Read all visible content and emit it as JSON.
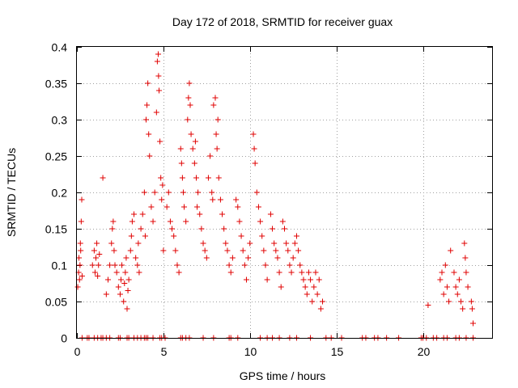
{
  "chart_data": {
    "type": "scatter",
    "title": "Day 172 of 2018, SRMTID for receiver guax",
    "xlabel": "GPS time / hours",
    "ylabel": "SRMTID / TECUs",
    "xlim": [
      0,
      24
    ],
    "ylim": [
      0,
      0.4
    ],
    "grid": true,
    "marker": "+",
    "color": "#e00000",
    "x_ticks": [
      {
        "value": 0,
        "label": "0"
      },
      {
        "value": 5,
        "label": "5"
      },
      {
        "value": 10,
        "label": "10"
      },
      {
        "value": 15,
        "label": "15"
      },
      {
        "value": 20,
        "label": "20"
      }
    ],
    "y_ticks": [
      {
        "value": 0,
        "label": "0"
      },
      {
        "value": 0.05,
        "label": "0.05"
      },
      {
        "value": 0.1,
        "label": "0.1"
      },
      {
        "value": 0.15,
        "label": "0.15"
      },
      {
        "value": 0.2,
        "label": "0.2"
      },
      {
        "value": 0.25,
        "label": "0.25"
      },
      {
        "value": 0.3,
        "label": "0.3"
      },
      {
        "value": 0.35,
        "label": "0.35"
      },
      {
        "value": 0.4,
        "label": "0.4"
      }
    ],
    "points": [
      [
        0.05,
        0.07
      ],
      [
        0.1,
        0.09
      ],
      [
        0.12,
        0.11
      ],
      [
        0.15,
        0.08
      ],
      [
        0.18,
        0.1
      ],
      [
        0.2,
        0.13
      ],
      [
        0.22,
        0.12
      ],
      [
        0.25,
        0.16
      ],
      [
        0.28,
        0.19
      ],
      [
        0.3,
        0.085
      ],
      [
        0.9,
        0.1
      ],
      [
        1.0,
        0.12
      ],
      [
        1.05,
        0.09
      ],
      [
        1.1,
        0.11
      ],
      [
        1.15,
        0.13
      ],
      [
        1.2,
        0.085
      ],
      [
        1.25,
        0.1
      ],
      [
        1.3,
        0.115
      ],
      [
        1.5,
        0.22
      ],
      [
        1.7,
        0.06
      ],
      [
        1.8,
        0.08
      ],
      [
        1.9,
        0.1
      ],
      [
        2.0,
        0.13
      ],
      [
        2.05,
        0.15
      ],
      [
        2.1,
        0.16
      ],
      [
        2.15,
        0.12
      ],
      [
        2.2,
        0.1
      ],
      [
        2.3,
        0.09
      ],
      [
        2.4,
        0.07
      ],
      [
        2.5,
        0.06
      ],
      [
        2.55,
        0.08
      ],
      [
        2.6,
        0.1
      ],
      [
        2.7,
        0.05
      ],
      [
        2.75,
        0.075
      ],
      [
        2.8,
        0.09
      ],
      [
        2.85,
        0.11
      ],
      [
        2.9,
        0.04
      ],
      [
        2.95,
        0.065
      ],
      [
        3.0,
        0.08
      ],
      [
        3.1,
        0.12
      ],
      [
        3.15,
        0.14
      ],
      [
        3.2,
        0.16
      ],
      [
        3.3,
        0.17
      ],
      [
        3.4,
        0.11
      ],
      [
        3.5,
        0.1
      ],
      [
        3.55,
        0.13
      ],
      [
        3.6,
        0.09
      ],
      [
        3.7,
        0.15
      ],
      [
        3.8,
        0.17
      ],
      [
        3.9,
        0.2
      ],
      [
        3.95,
        0.14
      ],
      [
        4.0,
        0.3
      ],
      [
        4.05,
        0.32
      ],
      [
        4.1,
        0.35
      ],
      [
        4.15,
        0.28
      ],
      [
        4.2,
        0.25
      ],
      [
        4.3,
        0.18
      ],
      [
        4.4,
        0.16
      ],
      [
        4.5,
        0.2
      ],
      [
        4.6,
        0.31
      ],
      [
        4.65,
        0.38
      ],
      [
        4.7,
        0.39
      ],
      [
        4.72,
        0.36
      ],
      [
        4.75,
        0.34
      ],
      [
        4.8,
        0.27
      ],
      [
        4.85,
        0.22
      ],
      [
        4.9,
        0.19
      ],
      [
        4.95,
        0.21
      ],
      [
        5.0,
        0.12
      ],
      [
        5.2,
        0.18
      ],
      [
        5.3,
        0.2
      ],
      [
        5.4,
        0.16
      ],
      [
        5.5,
        0.15
      ],
      [
        5.6,
        0.14
      ],
      [
        5.7,
        0.12
      ],
      [
        5.8,
        0.1
      ],
      [
        5.9,
        0.09
      ],
      [
        6.0,
        0.26
      ],
      [
        6.05,
        0.24
      ],
      [
        6.1,
        0.22
      ],
      [
        6.15,
        0.2
      ],
      [
        6.2,
        0.18
      ],
      [
        6.3,
        0.16
      ],
      [
        6.4,
        0.3
      ],
      [
        6.45,
        0.33
      ],
      [
        6.5,
        0.35
      ],
      [
        6.55,
        0.32
      ],
      [
        6.6,
        0.28
      ],
      [
        6.7,
        0.26
      ],
      [
        6.8,
        0.24
      ],
      [
        6.85,
        0.27
      ],
      [
        6.9,
        0.22
      ],
      [
        6.95,
        0.18
      ],
      [
        7.0,
        0.2
      ],
      [
        7.1,
        0.17
      ],
      [
        7.2,
        0.15
      ],
      [
        7.3,
        0.13
      ],
      [
        7.4,
        0.12
      ],
      [
        7.5,
        0.11
      ],
      [
        7.6,
        0.22
      ],
      [
        7.7,
        0.25
      ],
      [
        7.8,
        0.2
      ],
      [
        7.85,
        0.19
      ],
      [
        7.9,
        0.32
      ],
      [
        8.0,
        0.33
      ],
      [
        8.05,
        0.28
      ],
      [
        8.1,
        0.26
      ],
      [
        8.15,
        0.3
      ],
      [
        8.2,
        0.22
      ],
      [
        8.3,
        0.19
      ],
      [
        8.4,
        0.17
      ],
      [
        8.5,
        0.15
      ],
      [
        8.6,
        0.13
      ],
      [
        8.7,
        0.12
      ],
      [
        8.8,
        0.1
      ],
      [
        8.9,
        0.09
      ],
      [
        9.0,
        0.11
      ],
      [
        9.2,
        0.19
      ],
      [
        9.3,
        0.18
      ],
      [
        9.4,
        0.16
      ],
      [
        9.5,
        0.14
      ],
      [
        9.6,
        0.12
      ],
      [
        9.7,
        0.1
      ],
      [
        9.8,
        0.08
      ],
      [
        9.9,
        0.11
      ],
      [
        10.0,
        0.13
      ],
      [
        10.2,
        0.28
      ],
      [
        10.25,
        0.26
      ],
      [
        10.3,
        0.24
      ],
      [
        10.4,
        0.2
      ],
      [
        10.5,
        0.18
      ],
      [
        10.6,
        0.16
      ],
      [
        10.7,
        0.14
      ],
      [
        10.8,
        0.12
      ],
      [
        10.9,
        0.1
      ],
      [
        11.0,
        0.08
      ],
      [
        11.2,
        0.17
      ],
      [
        11.3,
        0.15
      ],
      [
        11.4,
        0.13
      ],
      [
        11.5,
        0.12
      ],
      [
        11.6,
        0.11
      ],
      [
        11.7,
        0.09
      ],
      [
        11.8,
        0.07
      ],
      [
        11.9,
        0.16
      ],
      [
        12.0,
        0.15
      ],
      [
        12.1,
        0.13
      ],
      [
        12.2,
        0.12
      ],
      [
        12.3,
        0.1
      ],
      [
        12.4,
        0.09
      ],
      [
        12.5,
        0.11
      ],
      [
        12.6,
        0.13
      ],
      [
        12.7,
        0.14
      ],
      [
        12.8,
        0.12
      ],
      [
        12.9,
        0.1
      ],
      [
        13.0,
        0.09
      ],
      [
        13.1,
        0.08
      ],
      [
        13.2,
        0.07
      ],
      [
        13.3,
        0.06
      ],
      [
        13.4,
        0.09
      ],
      [
        13.5,
        0.08
      ],
      [
        13.6,
        0.05
      ],
      [
        13.7,
        0.07
      ],
      [
        13.8,
        0.09
      ],
      [
        13.9,
        0.06
      ],
      [
        14.0,
        0.08
      ],
      [
        14.1,
        0.04
      ],
      [
        14.2,
        0.05
      ],
      [
        20.3,
        0.045
      ],
      [
        21.0,
        0.08
      ],
      [
        21.1,
        0.09
      ],
      [
        21.2,
        0.06
      ],
      [
        21.3,
        0.1
      ],
      [
        21.4,
        0.07
      ],
      [
        21.5,
        0.05
      ],
      [
        21.6,
        0.12
      ],
      [
        21.8,
        0.09
      ],
      [
        21.9,
        0.07
      ],
      [
        22.0,
        0.06
      ],
      [
        22.1,
        0.08
      ],
      [
        22.2,
        0.05
      ],
      [
        22.3,
        0.04
      ],
      [
        22.4,
        0.13
      ],
      [
        22.45,
        0.11
      ],
      [
        22.5,
        0.09
      ],
      [
        22.6,
        0.07
      ],
      [
        22.8,
        0.05
      ],
      [
        22.85,
        0.04
      ],
      [
        22.9,
        0.02
      ]
    ],
    "zero_points_x": [
      0.3,
      0.6,
      0.7,
      1.0,
      1.2,
      1.4,
      1.5,
      1.7,
      1.9,
      2.4,
      2.5,
      2.9,
      3.0,
      3.3,
      3.5,
      3.7,
      3.9,
      4.0,
      4.1,
      4.4,
      4.8,
      4.9,
      5.1,
      6.0,
      6.1,
      6.3,
      6.5,
      7.3,
      7.9,
      8.8,
      8.9,
      9.3,
      10.6,
      11.0,
      11.3,
      11.7,
      12.3,
      12.7,
      13.5,
      14.4,
      14.7,
      15.3,
      16.5,
      16.7,
      17.2,
      17.4,
      17.9,
      18.6,
      19.9,
      20.0,
      20.2,
      20.6,
      20.8,
      21.2,
      21.4,
      21.9,
      22.1,
      22.5,
      22.9
    ]
  }
}
